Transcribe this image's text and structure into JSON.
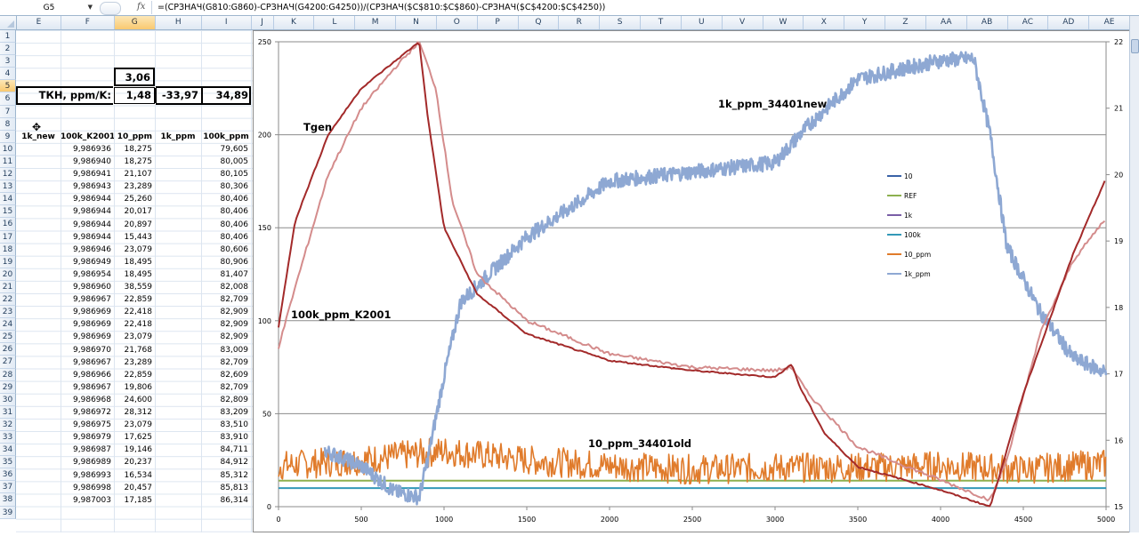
{
  "formula_bar": {
    "name_box": "G5",
    "fx_label": "fx",
    "formula": "=(СРЗНАЧ(G810:G860)-СРЗНАЧ(G4200:G4250))/(СРЗНАЧ($C$810:$C$860)-СРЗНАЧ($C$4200:$C$4250))"
  },
  "columns": [
    "E",
    "F",
    "G",
    "H",
    "I",
    "J",
    "K",
    "L",
    "M",
    "N",
    "O",
    "P",
    "Q",
    "R",
    "S",
    "T",
    "U",
    "V",
    "W",
    "X",
    "Y",
    "Z",
    "AA",
    "AB",
    "AC",
    "AD",
    "AE"
  ],
  "selected_column": "G",
  "rows": [
    "1",
    "2",
    "3",
    "4",
    "5",
    "6",
    "7",
    "8",
    "9",
    "10",
    "11",
    "12",
    "13",
    "14",
    "15",
    "16",
    "17",
    "18",
    "19",
    "20",
    "21",
    "22",
    "23",
    "24",
    "25",
    "26",
    "27",
    "28",
    "29",
    "30",
    "31",
    "32",
    "33",
    "34",
    "35",
    "36",
    "37",
    "38",
    "39"
  ],
  "selected_row": "5",
  "summary": {
    "g4": "3,06",
    "label": "ТКН, ppm/K:",
    "g5": "1,48",
    "h5": "-33,97",
    "i5": "34,89"
  },
  "table": {
    "headers": [
      "1k_new",
      "100k_K2001",
      "10_ppm",
      "1k_ppm",
      "100k_ppm"
    ],
    "rows": [
      [
        "",
        "9,986936",
        "18,275",
        "",
        "79,605"
      ],
      [
        "",
        "9,986940",
        "18,275",
        "",
        "80,005"
      ],
      [
        "",
        "9,986941",
        "21,107",
        "",
        "80,105"
      ],
      [
        "",
        "9,986943",
        "23,289",
        "",
        "80,306"
      ],
      [
        "",
        "9,986944",
        "25,260",
        "",
        "80,406"
      ],
      [
        "",
        "9,986944",
        "20,017",
        "",
        "80,406"
      ],
      [
        "",
        "9,986944",
        "20,897",
        "",
        "80,406"
      ],
      [
        "",
        "9,986944",
        "15,443",
        "",
        "80,406"
      ],
      [
        "",
        "9,986946",
        "23,079",
        "",
        "80,606"
      ],
      [
        "",
        "9,986949",
        "18,495",
        "",
        "80,906"
      ],
      [
        "",
        "9,986954",
        "18,495",
        "",
        "81,407"
      ],
      [
        "",
        "9,986960",
        "38,559",
        "",
        "82,008"
      ],
      [
        "",
        "9,986967",
        "22,859",
        "",
        "82,709"
      ],
      [
        "",
        "9,986969",
        "22,418",
        "",
        "82,909"
      ],
      [
        "",
        "9,986969",
        "22,418",
        "",
        "82,909"
      ],
      [
        "",
        "9,986969",
        "23,079",
        "",
        "82,909"
      ],
      [
        "",
        "9,986970",
        "21,768",
        "",
        "83,009"
      ],
      [
        "",
        "9,986967",
        "23,289",
        "",
        "82,709"
      ],
      [
        "",
        "9,986966",
        "22,859",
        "",
        "82,609"
      ],
      [
        "",
        "9,986967",
        "19,806",
        "",
        "82,709"
      ],
      [
        "",
        "9,986968",
        "24,600",
        "",
        "82,809"
      ],
      [
        "",
        "9,986972",
        "28,312",
        "",
        "83,209"
      ],
      [
        "",
        "9,986975",
        "23,079",
        "",
        "83,510"
      ],
      [
        "",
        "9,986979",
        "17,625",
        "",
        "83,910"
      ],
      [
        "",
        "9,986987",
        "19,146",
        "",
        "84,711"
      ],
      [
        "",
        "9,986989",
        "20,237",
        "",
        "84,912"
      ],
      [
        "",
        "9,986993",
        "16,534",
        "",
        "85,312"
      ],
      [
        "",
        "9,986998",
        "20,457",
        "",
        "85,813"
      ],
      [
        "",
        "9,987003",
        "17,185",
        "",
        "86,314"
      ]
    ]
  },
  "chart_data": {
    "type": "line",
    "title": "",
    "x_ticks": [
      "0",
      "500",
      "1000",
      "1500",
      "2000",
      "2500",
      "3000",
      "3500",
      "4000",
      "4500",
      "5000"
    ],
    "xlim": [
      0,
      5000
    ],
    "y_left_ticks": [
      "0",
      "50",
      "100",
      "150",
      "200",
      "250"
    ],
    "ylim_left": [
      0,
      250
    ],
    "y_right_ticks": [
      "15",
      "16",
      "17",
      "18",
      "19",
      "20",
      "21",
      "22"
    ],
    "ylim_right": [
      15,
      22
    ],
    "grid": true,
    "legend": {
      "position": "inside-right",
      "entries": [
        {
          "name": "10",
          "color": "#3a62a7"
        },
        {
          "name": "REF",
          "color": "#8db04f"
        },
        {
          "name": "1k",
          "color": "#7a5ea6"
        },
        {
          "name": "100k",
          "color": "#3399b8"
        },
        {
          "name": "10_ppm",
          "color": "#e07b2b"
        },
        {
          "name": "1k_ppm",
          "color": "#8ea8d3"
        }
      ]
    },
    "annotations": [
      "Tgen",
      "100k_ppm_K2001",
      "1k_ppm_34401new",
      "10_ppm_34401old"
    ],
    "series": [
      {
        "name": "Tgen",
        "axis": "right",
        "color": "#a32a2a",
        "x": [
          0,
          100,
          300,
          500,
          700,
          850,
          900,
          1000,
          1200,
          1500,
          2000,
          2500,
          3000,
          3100,
          3150,
          3300,
          3500,
          4000,
          4300,
          4500,
          4800,
          5000
        ],
        "y": [
          17.7,
          19.3,
          20.6,
          21.3,
          21.7,
          22.0,
          20.9,
          19.2,
          18.2,
          17.6,
          17.2,
          17.05,
          16.95,
          17.15,
          16.8,
          16.1,
          15.6,
          15.25,
          15.0,
          16.7,
          18.8,
          19.95
        ]
      },
      {
        "name": "100k_ppm_K2001",
        "axis": "right",
        "color": "#d48c8c",
        "x": [
          0,
          100,
          300,
          500,
          700,
          850,
          950,
          1050,
          1200,
          1500,
          2000,
          2500,
          3000,
          3100,
          3200,
          3500,
          4000,
          4300,
          4400,
          4600,
          4800,
          5000
        ],
        "y": [
          17.4,
          18.3,
          20.0,
          21.0,
          21.6,
          22.0,
          21.3,
          19.6,
          18.5,
          17.8,
          17.3,
          17.1,
          17.05,
          17.1,
          16.7,
          15.9,
          15.4,
          15.1,
          15.7,
          17.6,
          18.7,
          19.35
        ]
      },
      {
        "name": "1k_ppm",
        "axis": "left",
        "color": "#8ea8d3",
        "x": [
          280,
          500,
          700,
          850,
          900,
          1000,
          1100,
          1500,
          2000,
          2500,
          3000,
          3200,
          3500,
          4000,
          4200,
          4300,
          4400,
          4600,
          4800,
          5000
        ],
        "y": [
          30,
          22,
          8,
          5,
          25,
          70,
          110,
          145,
          175,
          180,
          185,
          205,
          230,
          240,
          241,
          200,
          140,
          105,
          80,
          72
        ]
      },
      {
        "name": "10_ppm",
        "axis": "left",
        "color": "#e07b2b",
        "x": [
          0,
          500,
          1000,
          1500,
          2000,
          2500,
          3000,
          3500,
          4000,
          4500,
          5000
        ],
        "y": [
          22,
          25,
          30,
          25,
          22,
          20,
          21,
          21,
          22,
          20,
          23
        ]
      },
      {
        "name": "REF",
        "axis": "left",
        "color": "#8db04f",
        "x": [
          0,
          5000
        ],
        "y": [
          14,
          14
        ]
      },
      {
        "name": "100k",
        "axis": "left",
        "color": "#3399b8",
        "x": [
          0,
          5000
        ],
        "y": [
          10,
          10
        ]
      }
    ]
  }
}
